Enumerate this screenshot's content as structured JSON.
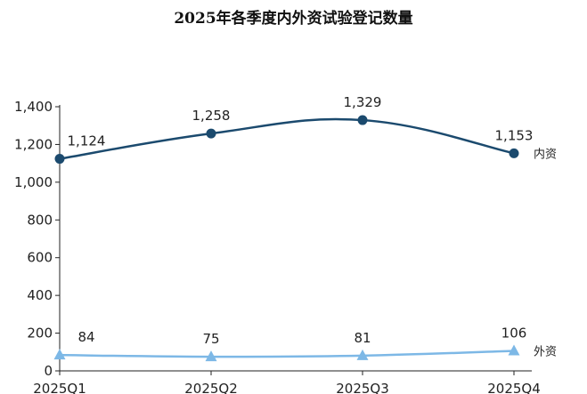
{
  "chart_data": {
    "type": "line",
    "title": "2025年各季度内外资试验登记数量",
    "categories": [
      "2025Q1",
      "2025Q2",
      "2025Q3",
      "2025Q4"
    ],
    "series": [
      {
        "name": "内资",
        "values": [
          1124,
          1258,
          1329,
          1153
        ],
        "labels": [
          "1,124",
          "1,258",
          "1,329",
          "1,153"
        ],
        "color": "#1b4a6e",
        "marker": "circle",
        "smooth": true
      },
      {
        "name": "外资",
        "values": [
          84,
          75,
          81,
          106
        ],
        "labels": [
          "84",
          "75",
          "81",
          "106"
        ],
        "color": "#7db8e6",
        "marker": "triangle",
        "smooth": true
      }
    ],
    "ylim": [
      0,
      1400
    ],
    "yticks": [
      0,
      200,
      400,
      600,
      800,
      1000,
      1200,
      1400
    ],
    "ytick_labels": [
      "0",
      "200",
      "400",
      "600",
      "800",
      "1,000",
      "1,200",
      "1,400"
    ],
    "grid": false,
    "legend": "inline-right"
  }
}
